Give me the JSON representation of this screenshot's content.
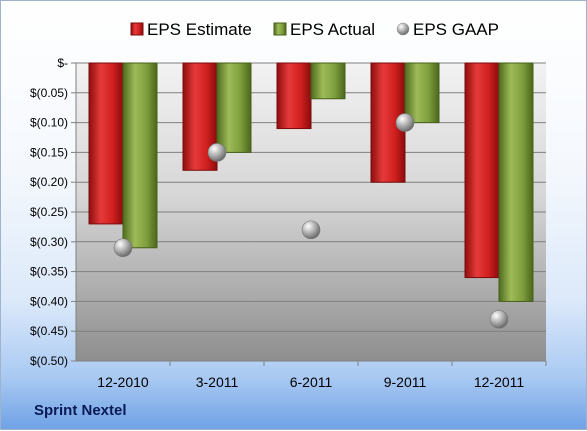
{
  "company": "Sprint Nextel",
  "chart_data": {
    "type": "bar",
    "categories": [
      "12-2010",
      "3-2011",
      "6-2011",
      "9-2011",
      "12-2011"
    ],
    "series": [
      {
        "name": "EPS Estimate",
        "kind": "bar",
        "color": "#d42a2a",
        "values": [
          -0.27,
          -0.18,
          -0.11,
          -0.2,
          -0.36
        ]
      },
      {
        "name": "EPS Actual",
        "kind": "bar",
        "color": "#7a9a3a",
        "values": [
          -0.31,
          -0.15,
          -0.06,
          -0.1,
          -0.4
        ]
      },
      {
        "name": "EPS GAAP",
        "kind": "marker",
        "color": "#9a9a9a",
        "values": [
          -0.31,
          -0.15,
          -0.28,
          -0.1,
          -0.43
        ]
      }
    ],
    "y_ticks": [
      {
        "value": 0,
        "label": "$-"
      },
      {
        "value": -0.05,
        "label": "$(0.05)"
      },
      {
        "value": -0.1,
        "label": "$(0.10)"
      },
      {
        "value": -0.15,
        "label": "$(0.15)"
      },
      {
        "value": -0.2,
        "label": "$(0.20)"
      },
      {
        "value": -0.25,
        "label": "$(0.25)"
      },
      {
        "value": -0.3,
        "label": "$(0.30)"
      },
      {
        "value": -0.35,
        "label": "$(0.35)"
      },
      {
        "value": -0.4,
        "label": "$(0.40)"
      },
      {
        "value": -0.45,
        "label": "$(0.45)"
      },
      {
        "value": -0.5,
        "label": "$(0.50)"
      }
    ],
    "ylim": [
      -0.5,
      0
    ],
    "grid": true,
    "legend_position": "top"
  }
}
